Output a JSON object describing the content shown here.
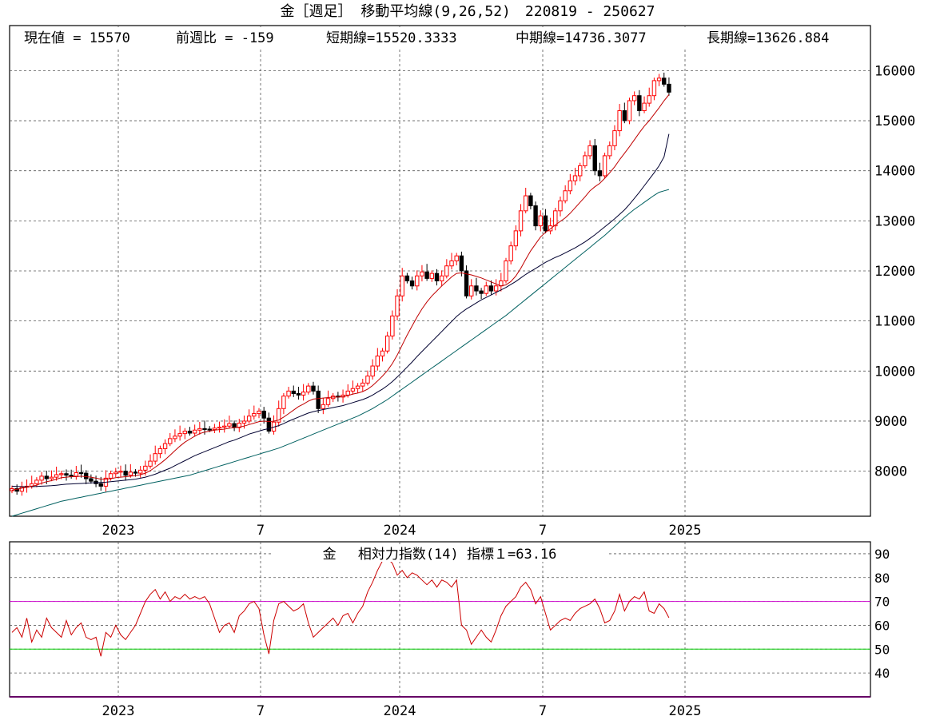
{
  "title": "金［週足］ 移動平均線(9,26,52)　220819 - 250627",
  "info": {
    "current": "現在値 = 15570",
    "change": "前週比 = -159",
    "short_ma": "短期線=15520.3333",
    "mid_ma": "中期線=14736.3077",
    "long_ma": "長期線=13626.884"
  },
  "rsi_label": "金　 相対力指数(14) 指標１=63.16",
  "x_ticks": [
    "2023",
    "7",
    "2024",
    "7",
    "2025"
  ],
  "colors": {
    "up_candle": "#ff0000",
    "down_candle": "#000000",
    "short_ma": "#c00000",
    "mid_ma": "#000030",
    "long_ma": "#006060",
    "rsi_line": "#cc0000",
    "rsi_upper": "#cc00cc",
    "rsi_lower": "#00cc00"
  },
  "chart_data": [
    {
      "type": "candlestick",
      "title": "金［週足］ 移動平均線(9,26,52)　220819 - 250627",
      "x_ticks": [
        "2023",
        "7",
        "2024",
        "7",
        "2025"
      ],
      "ylim": [
        7100,
        16900
      ],
      "y_ticks": [
        8000,
        9000,
        10000,
        11000,
        12000,
        13000,
        14000,
        15000,
        16000
      ],
      "grid": true,
      "close": [
        7650,
        7600,
        7680,
        7700,
        7750,
        7820,
        7900,
        7850,
        7880,
        7930,
        7950,
        7920,
        7900,
        7970,
        7960,
        7850,
        7800,
        7750,
        7700,
        7860,
        7950,
        7980,
        8000,
        7920,
        7980,
        7960,
        8020,
        8100,
        8200,
        8350,
        8450,
        8550,
        8650,
        8700,
        8750,
        8800,
        8760,
        8820,
        8850,
        8840,
        8830,
        8860,
        8880,
        8900,
        8950,
        8870,
        8960,
        9000,
        9100,
        9150,
        9200,
        9060,
        8800,
        8980,
        9250,
        9500,
        9600,
        9550,
        9520,
        9580,
        9700,
        9600,
        9250,
        9330,
        9450,
        9500,
        9480,
        9520,
        9600,
        9650,
        9700,
        9760,
        9900,
        10100,
        10300,
        10400,
        10700,
        11100,
        11500,
        11900,
        11800,
        11700,
        11900,
        11980,
        11850,
        11950,
        11800,
        11900,
        12100,
        12200,
        12300,
        12000,
        11500,
        11700,
        11600,
        11550,
        11700,
        11600,
        11700,
        11800,
        12200,
        12500,
        12800,
        13200,
        13500,
        13300,
        12900,
        13100,
        12800,
        12900,
        13200,
        13400,
        13600,
        13800,
        13900,
        14100,
        14300,
        14500,
        14000,
        13900,
        14300,
        14500,
        14800,
        15200,
        15000,
        15400,
        15500,
        15200,
        15350,
        15500,
        15800,
        15850,
        15729,
        15570
      ],
      "short_ma": [
        7620,
        7640,
        7660,
        7680,
        7700,
        7720,
        7760,
        7790,
        7810,
        7840,
        7870,
        7880,
        7890,
        7890,
        7900,
        7890,
        7880,
        7860,
        7840,
        7840,
        7850,
        7870,
        7880,
        7890,
        7900,
        7910,
        7930,
        7960,
        8010,
        8080,
        8150,
        8230,
        8320,
        8410,
        8500,
        8580,
        8640,
        8700,
        8750,
        8780,
        8800,
        8820,
        8830,
        8840,
        8860,
        8870,
        8880,
        8900,
        8930,
        8960,
        8990,
        9000,
        8990,
        9000,
        9020,
        9080,
        9150,
        9220,
        9290,
        9340,
        9400,
        9440,
        9450,
        9460,
        9470,
        9480,
        9480,
        9490,
        9510,
        9540,
        9560,
        9590,
        9640,
        9710,
        9800,
        9900,
        10010,
        10150,
        10320,
        10520,
        10720,
        10900,
        11080,
        11240,
        11380,
        11500,
        11600,
        11700,
        11790,
        11880,
        11950,
        11960,
        11940,
        11920,
        11890,
        11860,
        11820,
        11780,
        11740,
        11700,
        11720,
        11790,
        11900,
        12050,
        12230,
        12400,
        12540,
        12680,
        12770,
        12840,
        12920,
        12990,
        13060,
        13150,
        13260,
        13370,
        13480,
        13600,
        13680,
        13750,
        13850,
        13960,
        14080,
        14220,
        14350,
        14480,
        14620,
        14760,
        14890,
        15000,
        15130,
        15260,
        15400,
        15520
      ],
      "mid_ma": [
        7700,
        7695,
        7690,
        7690,
        7690,
        7695,
        7700,
        7705,
        7710,
        7720,
        7730,
        7740,
        7745,
        7750,
        7755,
        7760,
        7765,
        7770,
        7775,
        7780,
        7790,
        7800,
        7810,
        7820,
        7830,
        7840,
        7860,
        7880,
        7910,
        7940,
        7980,
        8020,
        8060,
        8110,
        8160,
        8210,
        8260,
        8310,
        8350,
        8390,
        8430,
        8470,
        8510,
        8550,
        8590,
        8620,
        8660,
        8700,
        8740,
        8770,
        8800,
        8830,
        8850,
        8880,
        8910,
        8950,
        9000,
        9040,
        9080,
        9120,
        9160,
        9190,
        9210,
        9230,
        9250,
        9270,
        9290,
        9310,
        9340,
        9370,
        9400,
        9430,
        9470,
        9520,
        9580,
        9640,
        9710,
        9790,
        9880,
        9980,
        10080,
        10180,
        10290,
        10390,
        10490,
        10590,
        10690,
        10790,
        10890,
        10990,
        11090,
        11170,
        11240,
        11300,
        11360,
        11420,
        11470,
        11520,
        11570,
        11620,
        11670,
        11730,
        11790,
        11860,
        11930,
        11990,
        12050,
        12110,
        12170,
        12220,
        12270,
        12310,
        12360,
        12410,
        12460,
        12520,
        12580,
        12650,
        12720,
        12800,
        12880,
        12960,
        13040,
        13130,
        13220,
        13330,
        13450,
        13570,
        13700,
        13830,
        13960,
        14100,
        14280,
        14736
      ],
      "long_ma": [
        7100,
        7130,
        7160,
        7190,
        7220,
        7250,
        7280,
        7310,
        7340,
        7370,
        7400,
        7420,
        7440,
        7460,
        7480,
        7500,
        7520,
        7540,
        7560,
        7580,
        7600,
        7620,
        7640,
        7660,
        7680,
        7700,
        7720,
        7740,
        7760,
        7780,
        7800,
        7820,
        7840,
        7860,
        7880,
        7900,
        7920,
        7950,
        7980,
        8010,
        8040,
        8070,
        8100,
        8130,
        8160,
        8190,
        8220,
        8250,
        8280,
        8310,
        8340,
        8370,
        8400,
        8430,
        8460,
        8500,
        8540,
        8580,
        8620,
        8660,
        8700,
        8740,
        8780,
        8820,
        8860,
        8900,
        8940,
        8980,
        9020,
        9060,
        9100,
        9150,
        9200,
        9250,
        9310,
        9370,
        9430,
        9500,
        9570,
        9640,
        9710,
        9780,
        9850,
        9920,
        9990,
        10060,
        10130,
        10200,
        10270,
        10340,
        10410,
        10480,
        10550,
        10620,
        10690,
        10760,
        10830,
        10900,
        10970,
        11040,
        11110,
        11190,
        11270,
        11350,
        11430,
        11510,
        11590,
        11670,
        11750,
        11830,
        11910,
        11990,
        12070,
        12150,
        12230,
        12310,
        12390,
        12470,
        12550,
        12630,
        12710,
        12800,
        12890,
        12980,
        13070,
        13150,
        13230,
        13300,
        13370,
        13440,
        13510,
        13570,
        13600,
        13626
      ]
    },
    {
      "type": "line",
      "title": "金　 相対力指数(14) 指標１=63.16",
      "x_ticks": [
        "2023",
        "7",
        "2024",
        "7",
        "2025"
      ],
      "ylim": [
        30,
        95
      ],
      "y_ticks": [
        40,
        50,
        60,
        70,
        80,
        90
      ],
      "reference_lines": [
        70,
        50
      ],
      "series": [
        {
          "values": [
            57,
            59,
            55,
            63,
            53,
            58,
            55,
            63,
            59,
            57,
            55,
            62,
            56,
            59,
            61,
            55,
            54,
            55,
            47,
            57,
            55,
            60,
            56,
            54,
            57,
            60,
            65,
            70,
            73,
            75,
            71,
            74,
            70,
            72,
            71,
            73,
            71,
            72,
            71,
            72,
            69,
            63,
            57,
            60,
            61,
            57,
            64,
            66,
            69,
            70,
            67,
            56,
            48,
            62,
            69,
            70,
            68,
            66,
            67,
            69,
            61,
            55,
            57,
            59,
            61,
            63,
            60,
            64,
            65,
            61,
            65,
            68,
            74,
            78,
            83,
            87,
            88,
            86,
            81,
            83,
            80,
            82,
            81,
            79,
            77,
            79,
            76,
            79,
            78,
            76,
            79,
            60,
            58,
            52,
            55,
            58,
            55,
            53,
            58,
            64,
            68,
            70,
            72,
            76,
            78,
            75,
            69,
            72,
            65,
            58,
            60,
            62,
            63,
            62,
            65,
            67,
            68,
            69,
            71,
            67,
            61,
            62,
            66,
            73,
            66,
            70,
            72,
            71,
            74,
            66,
            65,
            69,
            67,
            63.16
          ]
        }
      ]
    }
  ]
}
